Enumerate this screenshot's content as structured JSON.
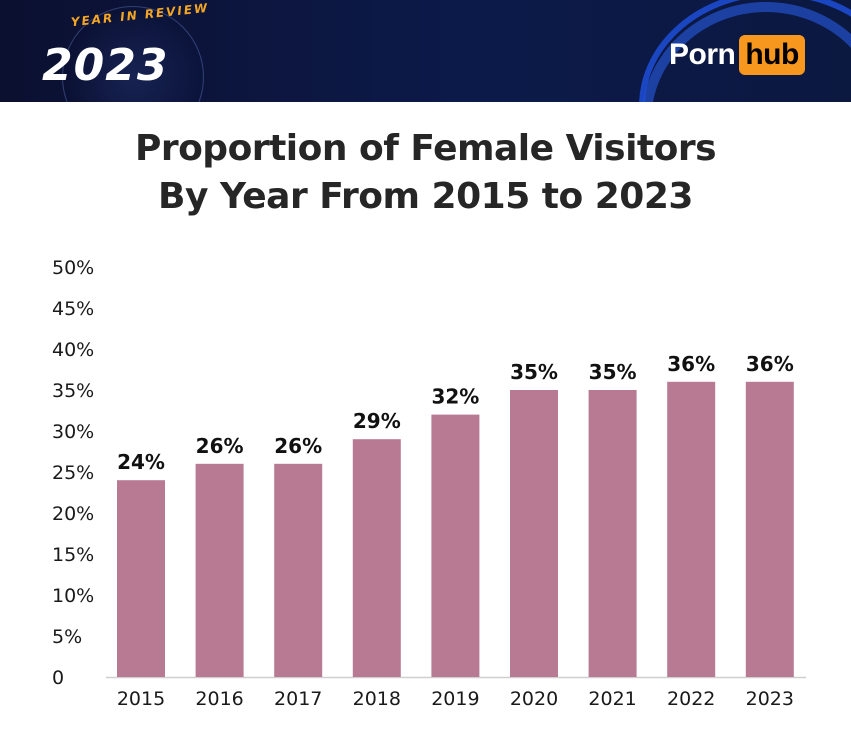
{
  "banner": {
    "review_text": "YEAR IN REVIEW",
    "year_text": "2023",
    "logo_part1": "Porn",
    "logo_part2": "hub"
  },
  "title_line1": "Proportion of Female Visitors",
  "title_line2": "By Year From 2015 to 2023",
  "colors": {
    "bar": "#b87a93",
    "axis": "#cfcfcf",
    "logo_accent": "#f7971d"
  },
  "chart_data": {
    "type": "bar",
    "title": "Proportion of Female Visitors By Year From 2015 to 2023",
    "xlabel": "",
    "ylabel": "",
    "categories": [
      "2015",
      "2016",
      "2017",
      "2018",
      "2019",
      "2020",
      "2021",
      "2022",
      "2023"
    ],
    "values": [
      24,
      26,
      26,
      29,
      32,
      35,
      35,
      36,
      36
    ],
    "data_labels": [
      "24%",
      "26%",
      "26%",
      "29%",
      "32%",
      "35%",
      "35%",
      "36%",
      "36%"
    ],
    "ylim": [
      0,
      50
    ],
    "yticks": [
      0,
      5,
      10,
      15,
      20,
      25,
      30,
      35,
      40,
      45,
      50
    ],
    "ytick_labels": [
      "0",
      "5%",
      "10%",
      "15%",
      "20%",
      "25%",
      "30%",
      "35%",
      "40%",
      "45%",
      "50%"
    ],
    "grid": false,
    "legend": "none"
  }
}
